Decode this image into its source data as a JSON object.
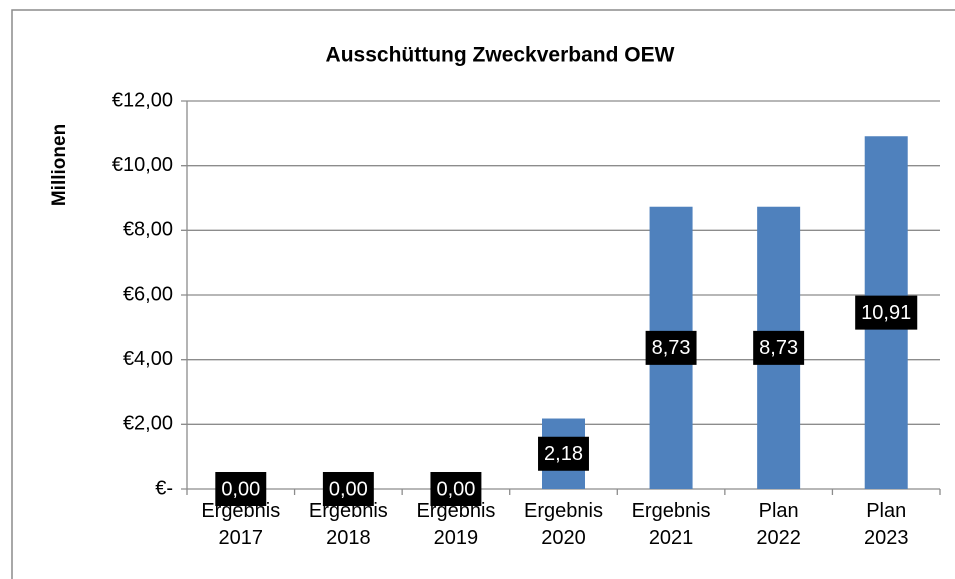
{
  "chart_data": {
    "type": "bar",
    "title": "Ausschüttung Zweckverband OEW",
    "y_label": "Millionen",
    "categories": [
      [
        "Ergebnis",
        "2017"
      ],
      [
        "Ergebnis",
        "2018"
      ],
      [
        "Ergebnis",
        "2019"
      ],
      [
        "Ergebnis",
        "2020"
      ],
      [
        "Ergebnis",
        "2021"
      ],
      [
        "Plan",
        "2022"
      ],
      [
        "Plan",
        "2023"
      ]
    ],
    "values": [
      0,
      0,
      0,
      2.18,
      8.73,
      8.73,
      10.91
    ],
    "value_labels": [
      "0,00",
      "0,00",
      "0,00",
      "2,18",
      "8,73",
      "8,73",
      "10,91"
    ],
    "color": "#4f81bd",
    "ylim": [
      0,
      12
    ],
    "yticks": [
      {
        "value": 0,
        "label": "€-"
      },
      {
        "value": 2,
        "label": "€2,00"
      },
      {
        "value": 4,
        "label": "€4,00"
      },
      {
        "value": 6,
        "label": "€6,00"
      },
      {
        "value": 8,
        "label": "€8,00"
      },
      {
        "value": 10,
        "label": "€10,00"
      },
      {
        "value": 12,
        "label": "€12,00"
      }
    ],
    "grid": true
  }
}
